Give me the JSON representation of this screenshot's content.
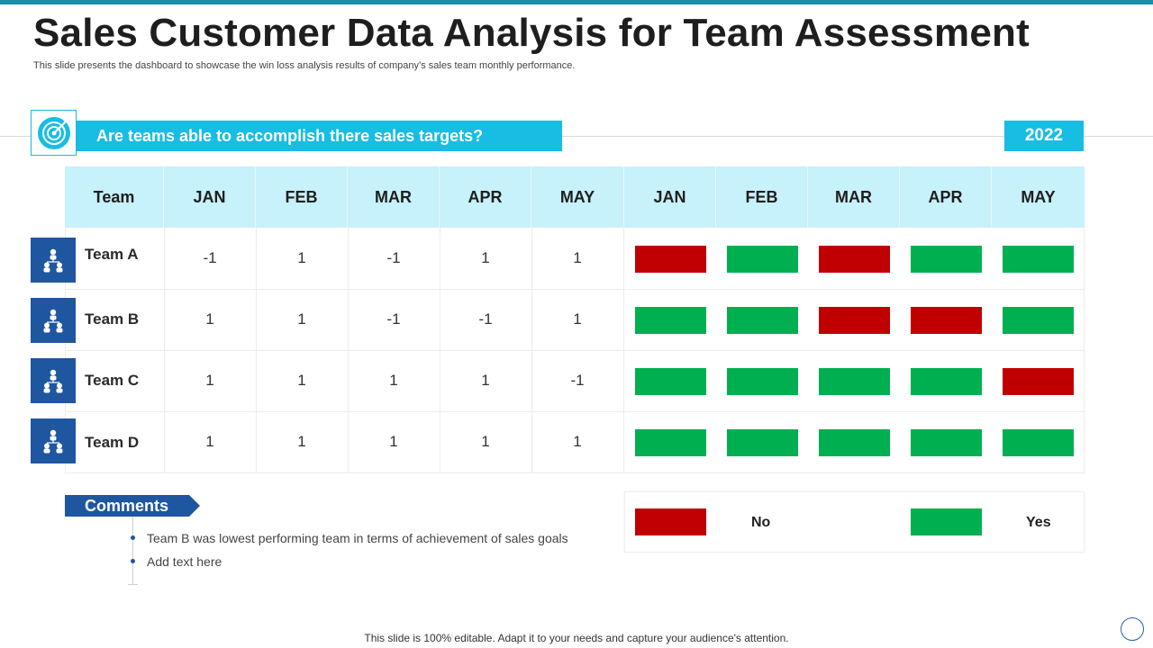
{
  "title": "Sales Customer Data Analysis for Team Assessment",
  "subtitle": "This slide presents the dashboard to showcase the win loss analysis results of company’s sales team monthly performance.",
  "question": "Are teams able to accomplish there sales targets?",
  "year": "2022",
  "table": {
    "headers": [
      "Team",
      "JAN",
      "FEB",
      "MAR",
      "APR",
      "MAY",
      "JAN",
      "FEB",
      "MAR",
      "APR",
      "MAY"
    ],
    "rows": [
      {
        "team": "Team A",
        "values": [
          "-1",
          "1",
          "-1",
          "1",
          "1"
        ],
        "status": [
          "no",
          "yes",
          "no",
          "yes",
          "yes"
        ]
      },
      {
        "team": "Team B",
        "values": [
          "1",
          "1",
          "-1",
          "-1",
          "1"
        ],
        "status": [
          "yes",
          "yes",
          "no",
          "no",
          "yes"
        ]
      },
      {
        "team": "Team C",
        "values": [
          "1",
          "1",
          "1",
          "1",
          "-1"
        ],
        "status": [
          "yes",
          "yes",
          "yes",
          "yes",
          "no"
        ]
      },
      {
        "team": "Team D",
        "values": [
          "1",
          "1",
          "1",
          "1",
          "1"
        ],
        "status": [
          "yes",
          "yes",
          "yes",
          "yes",
          "yes"
        ]
      }
    ]
  },
  "comments": {
    "label": "Comments",
    "items": [
      "Team B was lowest performing team in terms of achievement of sales goals",
      "Add text here"
    ]
  },
  "legend": {
    "no_label": "No",
    "yes_label": "Yes"
  },
  "colors": {
    "no": "#c00000",
    "yes": "#00b050",
    "accent": "#17bde3",
    "header_bg": "#c7f1fb",
    "team_icon_bg": "#1f56a0"
  },
  "footer": "This slide is 100% editable. Adapt it to your needs and capture your audience's attention."
}
